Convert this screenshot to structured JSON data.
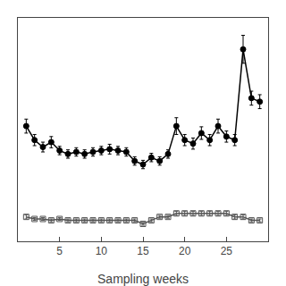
{
  "chart_data": {
    "type": "line",
    "xlabel": "Sampling weeks",
    "x": [
      1,
      2,
      3,
      4,
      5,
      6,
      7,
      8,
      9,
      10,
      11,
      12,
      13,
      14,
      15,
      16,
      17,
      18,
      19,
      20,
      21,
      22,
      23,
      24,
      25,
      26,
      27,
      28,
      29
    ],
    "series": [
      {
        "color": "#000000",
        "marker": "circle",
        "values": [
          16.5,
          14.5,
          13.5,
          14.2,
          13.0,
          12.5,
          12.8,
          12.5,
          12.8,
          13.0,
          13.2,
          13.0,
          12.8,
          11.5,
          11.0,
          12.0,
          11.5,
          12.5,
          16.5,
          14.5,
          14.0,
          15.5,
          14.5,
          16.5,
          15.0,
          14.5,
          27.5,
          20.5,
          20.0
        ],
        "errors": [
          1.0,
          0.8,
          0.7,
          0.8,
          0.6,
          0.6,
          0.6,
          0.6,
          0.6,
          0.6,
          0.7,
          0.6,
          0.6,
          0.6,
          0.6,
          0.6,
          0.6,
          0.6,
          1.2,
          0.8,
          0.8,
          0.9,
          0.8,
          1.0,
          0.8,
          0.8,
          2.0,
          1.0,
          1.0
        ]
      },
      {
        "color": "#555555",
        "marker": "square-open",
        "values": [
          3.5,
          3.2,
          3.2,
          3.0,
          3.2,
          3.0,
          3.0,
          3.0,
          3.0,
          3.0,
          3.0,
          3.0,
          3.0,
          3.0,
          2.5,
          3.0,
          3.5,
          3.5,
          4.0,
          4.0,
          4.0,
          4.0,
          4.0,
          4.0,
          4.0,
          3.5,
          3.5,
          3.0,
          3.0
        ],
        "errors": [
          0.3,
          0.2,
          0.2,
          0.2,
          0.2,
          0.2,
          0.2,
          0.2,
          0.2,
          0.2,
          0.2,
          0.2,
          0.2,
          0.2,
          0.2,
          0.2,
          0.2,
          0.2,
          0.3,
          0.3,
          0.3,
          0.3,
          0.3,
          0.3,
          0.3,
          0.3,
          0.3,
          0.2,
          0.2
        ]
      }
    ],
    "xlim": [
      0,
      30
    ],
    "ylim": [
      0,
      32
    ],
    "xticks": [
      5,
      10,
      15,
      20,
      25
    ],
    "yticks": [],
    "tick_labels": "x",
    "grid": false
  }
}
